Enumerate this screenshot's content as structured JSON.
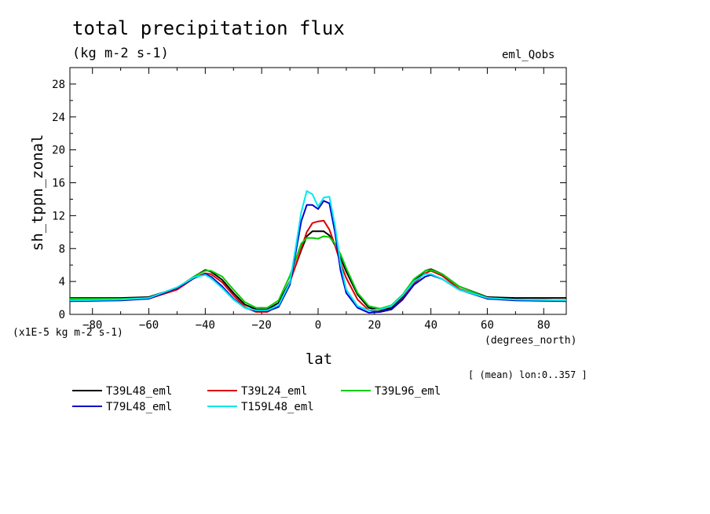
{
  "title": "total precipitation flux",
  "units_label": "(kg m-2 s-1)",
  "experiment": "eml_Qobs",
  "scale_note": "(x1E-5 kg m-2 s-1)",
  "x_units_note": "(degrees_north)",
  "mean_note": "[ (mean) lon:0..357 ]",
  "chart_data": {
    "type": "line",
    "xlabel": "lat",
    "ylabel": "sh_tppn_zonal",
    "xlim": [
      -88,
      88
    ],
    "ylim": [
      0,
      30
    ],
    "xticks": [
      -80,
      -60,
      -40,
      -20,
      0,
      20,
      40,
      60,
      80
    ],
    "yticks": [
      0,
      4,
      8,
      12,
      16,
      20,
      24,
      28
    ],
    "grid": false,
    "legend_position": "bottom",
    "series": [
      {
        "name": "T39L48_eml",
        "color": "#000000",
        "x": [
          -88,
          -70,
          -60,
          -50,
          -44,
          -40,
          -38,
          -34,
          -30,
          -26,
          -22,
          -18,
          -14,
          -10,
          -6,
          -4,
          -2,
          0,
          2,
          4,
          6,
          8,
          10,
          14,
          18,
          22,
          26,
          30,
          34,
          38,
          40,
          44,
          50,
          60,
          70,
          88
        ],
        "y": [
          2.0,
          2.0,
          2.1,
          3.2,
          4.6,
          5.4,
          5.2,
          4.2,
          2.6,
          1.2,
          0.6,
          0.6,
          1.4,
          4.0,
          7.8,
          9.5,
          10.1,
          10.1,
          10.1,
          9.6,
          8.4,
          6.8,
          5.2,
          2.4,
          0.8,
          0.5,
          0.8,
          2.1,
          4.0,
          5.3,
          5.5,
          4.9,
          3.4,
          2.1,
          2.0,
          2.0
        ]
      },
      {
        "name": "T39L24_eml",
        "color": "#dd0000",
        "x": [
          -88,
          -70,
          -60,
          -50,
          -44,
          -40,
          -38,
          -34,
          -30,
          -26,
          -22,
          -18,
          -14,
          -10,
          -6,
          -4,
          -2,
          0,
          2,
          4,
          6,
          8,
          10,
          14,
          18,
          22,
          26,
          30,
          34,
          38,
          40,
          44,
          50,
          60,
          70,
          88
        ],
        "y": [
          1.8,
          1.8,
          1.9,
          3.0,
          4.4,
          5.0,
          4.9,
          3.9,
          2.3,
          0.9,
          0.3,
          0.3,
          1.1,
          3.9,
          8.0,
          10.0,
          11.1,
          11.3,
          11.4,
          10.3,
          8.4,
          6.2,
          4.4,
          1.8,
          0.5,
          0.3,
          0.6,
          1.9,
          3.8,
          5.0,
          5.3,
          4.7,
          3.1,
          1.9,
          1.8,
          1.7
        ]
      },
      {
        "name": "T39L96_eml",
        "color": "#00cc00",
        "x": [
          -88,
          -70,
          -60,
          -50,
          -44,
          -40,
          -38,
          -34,
          -30,
          -26,
          -22,
          -18,
          -14,
          -10,
          -6,
          -4,
          -2,
          0,
          2,
          4,
          6,
          8,
          10,
          14,
          18,
          22,
          26,
          30,
          34,
          38,
          40,
          44,
          50,
          60,
          70,
          88
        ],
        "y": [
          1.9,
          1.9,
          2.0,
          3.2,
          4.6,
          5.3,
          5.3,
          4.6,
          3.0,
          1.5,
          0.8,
          0.8,
          1.7,
          4.7,
          8.6,
          9.3,
          9.3,
          9.2,
          9.5,
          9.4,
          8.6,
          7.3,
          5.6,
          2.6,
          1.0,
          0.7,
          1.1,
          2.4,
          4.3,
          5.3,
          5.4,
          4.9,
          3.4,
          2.0,
          1.8,
          1.7
        ]
      },
      {
        "name": "T79L48_eml",
        "color": "#0000cc",
        "x": [
          -88,
          -70,
          -60,
          -50,
          -44,
          -40,
          -38,
          -34,
          -30,
          -26,
          -22,
          -18,
          -14,
          -10,
          -8,
          -6,
          -4,
          -2,
          0,
          2,
          4,
          6,
          8,
          10,
          14,
          18,
          22,
          26,
          30,
          34,
          38,
          40,
          44,
          50,
          60,
          70,
          88
        ],
        "y": [
          1.6,
          1.7,
          1.9,
          3.2,
          4.4,
          4.9,
          4.6,
          3.4,
          1.9,
          0.8,
          0.4,
          0.4,
          0.9,
          3.6,
          7.4,
          11.3,
          13.3,
          13.3,
          12.8,
          13.8,
          13.5,
          10.0,
          5.3,
          2.6,
          0.8,
          0.2,
          0.3,
          0.6,
          1.8,
          3.6,
          4.6,
          4.8,
          4.3,
          3.0,
          1.9,
          1.7,
          1.6
        ]
      },
      {
        "name": "T159L48_eml",
        "color": "#00e8f0",
        "x": [
          -88,
          -70,
          -60,
          -50,
          -44,
          -40,
          -38,
          -34,
          -30,
          -26,
          -22,
          -18,
          -14,
          -10,
          -8,
          -6,
          -4,
          -2,
          0,
          2,
          4,
          6,
          8,
          10,
          14,
          18,
          22,
          26,
          30,
          34,
          38,
          40,
          44,
          50,
          60,
          70,
          88
        ],
        "y": [
          1.7,
          1.8,
          2.0,
          3.3,
          4.5,
          4.8,
          4.4,
          3.2,
          1.8,
          0.8,
          0.5,
          0.5,
          1.1,
          3.9,
          8.0,
          12.4,
          15.0,
          14.6,
          13.1,
          14.2,
          14.3,
          10.8,
          6.1,
          3.0,
          1.0,
          0.5,
          0.6,
          1.0,
          2.3,
          4.0,
          4.9,
          4.9,
          4.3,
          3.0,
          2.0,
          1.8,
          1.7
        ]
      }
    ]
  }
}
